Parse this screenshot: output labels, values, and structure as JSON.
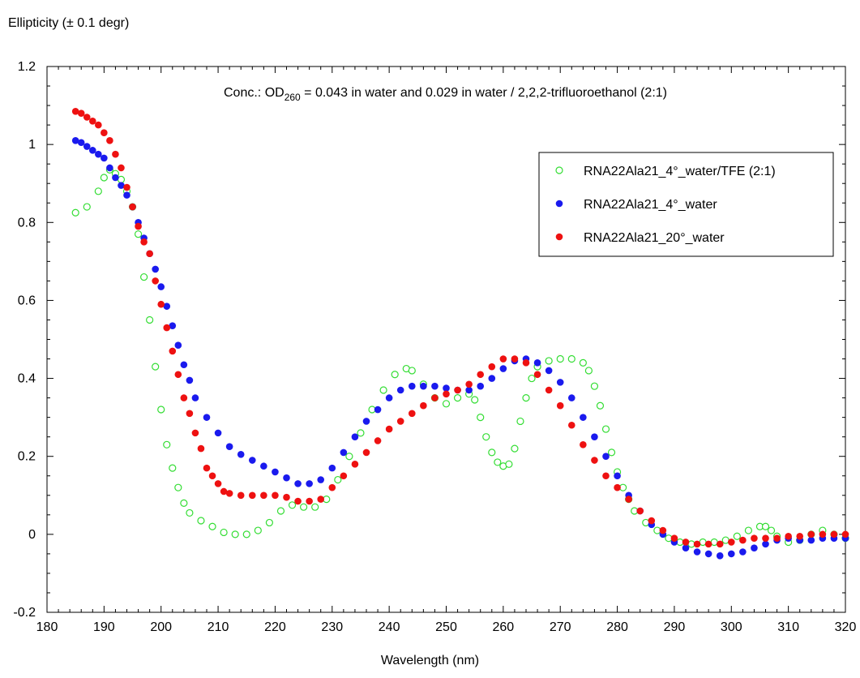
{
  "chart_data": {
    "type": "scatter",
    "ylabel": "Ellipticity (± 0.1 degr)",
    "xlabel": "Wavelength (nm)",
    "xlim": [
      180,
      320
    ],
    "ylim": [
      -0.2,
      1.2
    ],
    "x_ticks": [
      180,
      190,
      200,
      210,
      220,
      230,
      240,
      250,
      260,
      270,
      280,
      290,
      300,
      310,
      320
    ],
    "y_ticks": [
      -0.2,
      0,
      0.2,
      0.4,
      0.6,
      0.8,
      1,
      1.2
    ],
    "y_tick_labels": [
      "-0.2",
      "0",
      "0.2",
      "0.4",
      "0.6",
      "0.8",
      "1",
      "1.2"
    ],
    "annotation": {
      "prefix": "Conc.: OD",
      "subscript": "260",
      "suffix": " = 0.043 in water and 0.029 in water / 2,2,2-trifluoroethanol (2:1)"
    },
    "legend_position": "top-right",
    "grid": false,
    "series": [
      {
        "name": "RNA22Ala21_4°_water/TFE (2:1)",
        "marker": "open-circle",
        "color": "#33dd33",
        "points": [
          [
            185,
            0.825
          ],
          [
            187,
            0.84
          ],
          [
            189,
            0.88
          ],
          [
            190,
            0.915
          ],
          [
            191,
            0.935
          ],
          [
            192,
            0.925
          ],
          [
            193,
            0.91
          ],
          [
            194,
            0.88
          ],
          [
            195,
            0.84
          ],
          [
            196,
            0.77
          ],
          [
            197,
            0.66
          ],
          [
            198,
            0.55
          ],
          [
            199,
            0.43
          ],
          [
            200,
            0.32
          ],
          [
            201,
            0.23
          ],
          [
            202,
            0.17
          ],
          [
            203,
            0.12
          ],
          [
            204,
            0.08
          ],
          [
            205,
            0.055
          ],
          [
            207,
            0.035
          ],
          [
            209,
            0.02
          ],
          [
            211,
            0.005
          ],
          [
            213,
            0
          ],
          [
            215,
            0
          ],
          [
            217,
            0.01
          ],
          [
            219,
            0.03
          ],
          [
            221,
            0.06
          ],
          [
            223,
            0.075
          ],
          [
            225,
            0.07
          ],
          [
            227,
            0.07
          ],
          [
            229,
            0.09
          ],
          [
            231,
            0.14
          ],
          [
            233,
            0.2
          ],
          [
            235,
            0.26
          ],
          [
            237,
            0.32
          ],
          [
            239,
            0.37
          ],
          [
            241,
            0.41
          ],
          [
            243,
            0.425
          ],
          [
            244,
            0.42
          ],
          [
            246,
            0.385
          ],
          [
            248,
            0.35
          ],
          [
            250,
            0.335
          ],
          [
            252,
            0.35
          ],
          [
            254,
            0.36
          ],
          [
            255,
            0.345
          ],
          [
            256,
            0.3
          ],
          [
            257,
            0.25
          ],
          [
            258,
            0.21
          ],
          [
            259,
            0.185
          ],
          [
            260,
            0.175
          ],
          [
            261,
            0.18
          ],
          [
            262,
            0.22
          ],
          [
            263,
            0.29
          ],
          [
            264,
            0.35
          ],
          [
            265,
            0.4
          ],
          [
            266,
            0.43
          ],
          [
            268,
            0.445
          ],
          [
            270,
            0.45
          ],
          [
            272,
            0.45
          ],
          [
            274,
            0.44
          ],
          [
            275,
            0.42
          ],
          [
            276,
            0.38
          ],
          [
            277,
            0.33
          ],
          [
            278,
            0.27
          ],
          [
            279,
            0.21
          ],
          [
            280,
            0.16
          ],
          [
            281,
            0.12
          ],
          [
            282,
            0.09
          ],
          [
            283,
            0.06
          ],
          [
            285,
            0.03
          ],
          [
            287,
            0.01
          ],
          [
            289,
            -0.01
          ],
          [
            291,
            -0.02
          ],
          [
            293,
            -0.025
          ],
          [
            295,
            -0.02
          ],
          [
            297,
            -0.02
          ],
          [
            299,
            -0.015
          ],
          [
            301,
            -0.005
          ],
          [
            303,
            0.01
          ],
          [
            305,
            0.02
          ],
          [
            306,
            0.02
          ],
          [
            307,
            0.01
          ],
          [
            308,
            -0.005
          ],
          [
            310,
            -0.02
          ],
          [
            312,
            -0.015
          ],
          [
            314,
            0
          ],
          [
            316,
            0.01
          ],
          [
            318,
            0
          ],
          [
            320,
            -0.01
          ]
        ]
      },
      {
        "name": "RNA22Ala21_4°_water",
        "marker": "filled-circle",
        "color": "#1a1aee",
        "points": [
          [
            185,
            1.01
          ],
          [
            186,
            1.005
          ],
          [
            187,
            0.995
          ],
          [
            188,
            0.985
          ],
          [
            189,
            0.975
          ],
          [
            190,
            0.965
          ],
          [
            191,
            0.94
          ],
          [
            192,
            0.915
          ],
          [
            193,
            0.895
          ],
          [
            194,
            0.87
          ],
          [
            195,
            0.84
          ],
          [
            196,
            0.8
          ],
          [
            197,
            0.76
          ],
          [
            198,
            0.72
          ],
          [
            199,
            0.68
          ],
          [
            200,
            0.635
          ],
          [
            201,
            0.585
          ],
          [
            202,
            0.535
          ],
          [
            203,
            0.485
          ],
          [
            204,
            0.435
          ],
          [
            205,
            0.395
          ],
          [
            206,
            0.35
          ],
          [
            208,
            0.3
          ],
          [
            210,
            0.26
          ],
          [
            212,
            0.225
          ],
          [
            214,
            0.205
          ],
          [
            216,
            0.19
          ],
          [
            218,
            0.175
          ],
          [
            220,
            0.16
          ],
          [
            222,
            0.145
          ],
          [
            224,
            0.13
          ],
          [
            226,
            0.13
          ],
          [
            228,
            0.14
          ],
          [
            230,
            0.17
          ],
          [
            232,
            0.21
          ],
          [
            234,
            0.25
          ],
          [
            236,
            0.29
          ],
          [
            238,
            0.32
          ],
          [
            240,
            0.35
          ],
          [
            242,
            0.37
          ],
          [
            244,
            0.38
          ],
          [
            246,
            0.38
          ],
          [
            248,
            0.38
          ],
          [
            250,
            0.375
          ],
          [
            252,
            0.37
          ],
          [
            254,
            0.37
          ],
          [
            256,
            0.38
          ],
          [
            258,
            0.4
          ],
          [
            260,
            0.425
          ],
          [
            262,
            0.445
          ],
          [
            264,
            0.45
          ],
          [
            266,
            0.44
          ],
          [
            268,
            0.42
          ],
          [
            270,
            0.39
          ],
          [
            272,
            0.35
          ],
          [
            274,
            0.3
          ],
          [
            276,
            0.25
          ],
          [
            278,
            0.2
          ],
          [
            280,
            0.15
          ],
          [
            282,
            0.1
          ],
          [
            284,
            0.06
          ],
          [
            286,
            0.025
          ],
          [
            288,
            0
          ],
          [
            290,
            -0.02
          ],
          [
            292,
            -0.035
          ],
          [
            294,
            -0.045
          ],
          [
            296,
            -0.05
          ],
          [
            298,
            -0.055
          ],
          [
            300,
            -0.05
          ],
          [
            302,
            -0.045
          ],
          [
            304,
            -0.035
          ],
          [
            306,
            -0.025
          ],
          [
            308,
            -0.015
          ],
          [
            310,
            -0.01
          ],
          [
            312,
            -0.015
          ],
          [
            314,
            -0.015
          ],
          [
            316,
            -0.01
          ],
          [
            318,
            -0.01
          ],
          [
            320,
            -0.01
          ]
        ]
      },
      {
        "name": "RNA22Ala21_20°_water",
        "marker": "filled-circle",
        "color": "#ee1111",
        "points": [
          [
            185,
            1.085
          ],
          [
            186,
            1.08
          ],
          [
            187,
            1.07
          ],
          [
            188,
            1.06
          ],
          [
            189,
            1.05
          ],
          [
            190,
            1.03
          ],
          [
            191,
            1.01
          ],
          [
            192,
            0.975
          ],
          [
            193,
            0.94
          ],
          [
            194,
            0.89
          ],
          [
            195,
            0.84
          ],
          [
            196,
            0.79
          ],
          [
            197,
            0.75
          ],
          [
            198,
            0.72
          ],
          [
            199,
            0.65
          ],
          [
            200,
            0.59
          ],
          [
            201,
            0.53
          ],
          [
            202,
            0.47
          ],
          [
            203,
            0.41
          ],
          [
            204,
            0.35
          ],
          [
            205,
            0.31
          ],
          [
            206,
            0.26
          ],
          [
            207,
            0.22
          ],
          [
            208,
            0.17
          ],
          [
            209,
            0.15
          ],
          [
            210,
            0.13
          ],
          [
            211,
            0.11
          ],
          [
            212,
            0.105
          ],
          [
            214,
            0.1
          ],
          [
            216,
            0.1
          ],
          [
            218,
            0.1
          ],
          [
            220,
            0.1
          ],
          [
            222,
            0.095
          ],
          [
            224,
            0.085
          ],
          [
            226,
            0.085
          ],
          [
            228,
            0.09
          ],
          [
            230,
            0.12
          ],
          [
            232,
            0.15
          ],
          [
            234,
            0.18
          ],
          [
            236,
            0.21
          ],
          [
            238,
            0.24
          ],
          [
            240,
            0.27
          ],
          [
            242,
            0.29
          ],
          [
            244,
            0.31
          ],
          [
            246,
            0.33
          ],
          [
            248,
            0.35
          ],
          [
            250,
            0.36
          ],
          [
            252,
            0.37
          ],
          [
            254,
            0.385
          ],
          [
            256,
            0.41
          ],
          [
            258,
            0.43
          ],
          [
            260,
            0.45
          ],
          [
            262,
            0.45
          ],
          [
            264,
            0.44
          ],
          [
            266,
            0.41
          ],
          [
            268,
            0.37
          ],
          [
            270,
            0.33
          ],
          [
            272,
            0.28
          ],
          [
            274,
            0.23
          ],
          [
            276,
            0.19
          ],
          [
            278,
            0.15
          ],
          [
            280,
            0.12
          ],
          [
            282,
            0.09
          ],
          [
            284,
            0.06
          ],
          [
            286,
            0.035
          ],
          [
            288,
            0.01
          ],
          [
            290,
            -0.01
          ],
          [
            292,
            -0.02
          ],
          [
            294,
            -0.025
          ],
          [
            296,
            -0.025
          ],
          [
            298,
            -0.025
          ],
          [
            300,
            -0.02
          ],
          [
            302,
            -0.015
          ],
          [
            304,
            -0.01
          ],
          [
            306,
            -0.01
          ],
          [
            308,
            -0.01
          ],
          [
            310,
            -0.005
          ],
          [
            312,
            -0.005
          ],
          [
            314,
            0
          ],
          [
            316,
            0
          ],
          [
            318,
            0
          ],
          [
            320,
            0
          ]
        ]
      }
    ]
  }
}
